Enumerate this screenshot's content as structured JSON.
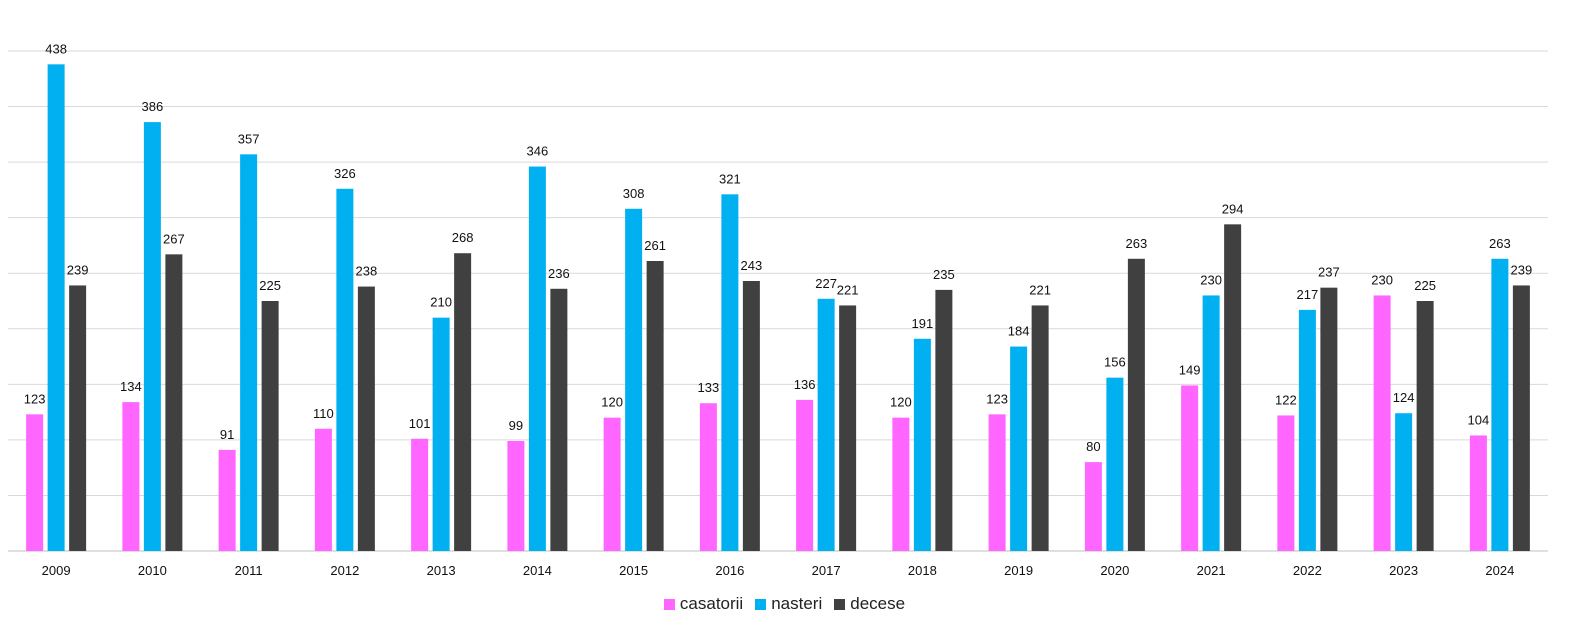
{
  "chart_data": {
    "type": "bar",
    "categories": [
      "2009",
      "2010",
      "2011",
      "2012",
      "2013",
      "2014",
      "2015",
      "2016",
      "2017",
      "2018",
      "2019",
      "2020",
      "2021",
      "2022",
      "2023",
      "2024"
    ],
    "series": [
      {
        "name": "casatorii",
        "color": "#ff66ff",
        "values": [
          123,
          134,
          91,
          110,
          101,
          99,
          120,
          133,
          136,
          120,
          123,
          80,
          149,
          122,
          230,
          104
        ]
      },
      {
        "name": "nasteri",
        "color": "#00b0f0",
        "values": [
          438,
          386,
          357,
          326,
          210,
          346,
          308,
          321,
          227,
          191,
          184,
          156,
          230,
          217,
          124,
          263
        ]
      },
      {
        "name": "decese",
        "color": "#404040",
        "values": [
          239,
          267,
          225,
          238,
          268,
          236,
          261,
          243,
          221,
          235,
          221,
          263,
          294,
          237,
          225,
          239
        ]
      }
    ],
    "ylim": [
      0,
      450
    ],
    "grid": true,
    "legend_position": "bottom",
    "data_labels": true
  }
}
